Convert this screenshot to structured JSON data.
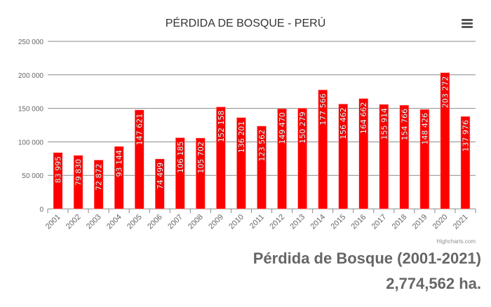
{
  "chart_data": {
    "type": "bar",
    "title": "PÉRDIDA DE BOSQUE - PERÚ",
    "categories": [
      "2001",
      "2002",
      "2003",
      "2004",
      "2005",
      "2006",
      "2007",
      "2008",
      "2009",
      "2010",
      "2011",
      "2012",
      "2013",
      "2014",
      "2015",
      "2016",
      "2017",
      "2018",
      "2019",
      "2020",
      "2021"
    ],
    "values": [
      83995,
      79830,
      72872,
      93144,
      147621,
      74499,
      106185,
      105702,
      152158,
      136201,
      123562,
      149470,
      150279,
      177566,
      156462,
      164662,
      155914,
      154766,
      148426,
      203272,
      137976
    ],
    "data_labels": [
      "83 995",
      "79 830",
      "72 872",
      "93 144",
      "147 621",
      "74 499",
      "106 185",
      "105 702",
      "152 158",
      "136 201",
      "123 562",
      "149 470",
      "150 279",
      "177 566",
      "156 462",
      "164 662",
      "155 914",
      "154 766",
      "148 426",
      "203 272",
      "137 976"
    ],
    "yticks": [
      0,
      50000,
      100000,
      150000,
      200000,
      250000
    ],
    "ytick_labels": [
      "0",
      "50 000",
      "100 000",
      "150 000",
      "200 000",
      "250 000"
    ],
    "ylim": [
      0,
      250000
    ],
    "xlabel": "",
    "ylabel": "",
    "grid": true,
    "bar_color": "#ff0000"
  },
  "credits": "Highcharts.com",
  "subtitle": "Pérdida de Bosque (2001-2021)",
  "total": "2,774,562 ha."
}
